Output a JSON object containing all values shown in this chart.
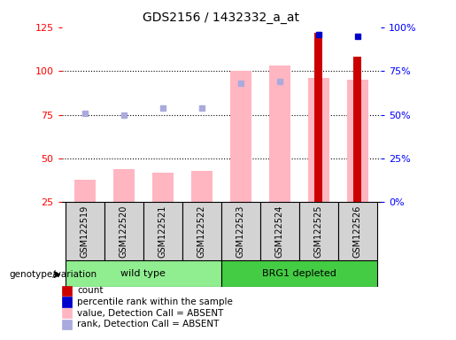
{
  "title": "GDS2156 / 1432332_a_at",
  "samples": [
    "GSM122519",
    "GSM122520",
    "GSM122521",
    "GSM122522",
    "GSM122523",
    "GSM122524",
    "GSM122525",
    "GSM122526"
  ],
  "count_values": [
    0,
    0,
    0,
    0,
    0,
    0,
    122,
    108
  ],
  "count_color": "#CC0000",
  "percentile_rank_values": [
    null,
    null,
    null,
    null,
    null,
    null,
    96,
    95
  ],
  "percentile_rank_color": "#0000CC",
  "absent_value_bars": [
    38,
    44,
    42,
    43,
    100,
    103,
    96,
    95
  ],
  "absent_value_color": "#FFB6C1",
  "absent_rank_dots": [
    76,
    75,
    79,
    79,
    93,
    94,
    null,
    null
  ],
  "absent_rank_color": "#AAAADD",
  "ylim_left": [
    25,
    125
  ],
  "ylim_right": [
    0,
    100
  ],
  "yticks_left": [
    25,
    50,
    75,
    100,
    125
  ],
  "ytick_labels_left": [
    "25",
    "50",
    "75",
    "100",
    "125"
  ],
  "yticks_right_pct": [
    0,
    25,
    50,
    75,
    100
  ],
  "ytick_labels_right": [
    "0%",
    "25%",
    "50%",
    "75%",
    "100%"
  ],
  "legend_items": [
    {
      "label": "count",
      "color": "#CC0000"
    },
    {
      "label": "percentile rank within the sample",
      "color": "#0000CC"
    },
    {
      "label": "value, Detection Call = ABSENT",
      "color": "#FFB6C1"
    },
    {
      "label": "rank, Detection Call = ABSENT",
      "color": "#AAAADD"
    }
  ],
  "group1_name": "wild type",
  "group1_color": "#90EE90",
  "group1_indices": [
    0,
    1,
    2,
    3
  ],
  "group2_name": "BRG1 depleted",
  "group2_color": "#44CC44",
  "group2_indices": [
    4,
    5,
    6,
    7
  ],
  "genotype_label": "genotype/variation",
  "background_color": "#FFFFFF",
  "plot_bg_color": "#FFFFFF"
}
